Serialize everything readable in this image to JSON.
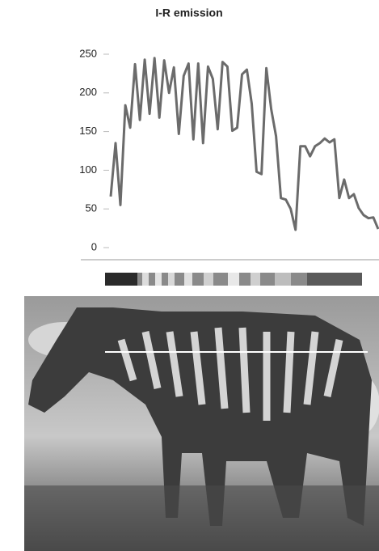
{
  "chart_data": {
    "type": "line",
    "title": "I-R emission",
    "values": [
      66,
      135,
      55,
      184,
      155,
      237,
      165,
      243,
      173,
      245,
      168,
      242,
      200,
      233,
      147,
      222,
      238,
      140,
      238,
      135,
      234,
      218,
      153,
      240,
      234,
      151,
      155,
      224,
      230,
      186,
      98,
      95,
      232,
      179,
      144,
      64,
      62,
      50,
      23,
      131,
      131,
      118,
      131,
      135,
      141,
      136,
      140,
      64,
      88,
      64,
      69,
      51,
      42,
      38,
      39,
      24
    ],
    "color": "#6b6b6b",
    "ylim": [
      0,
      250
    ],
    "yticks": [
      0,
      50,
      100,
      150,
      200,
      250
    ],
    "grid": false
  }
}
